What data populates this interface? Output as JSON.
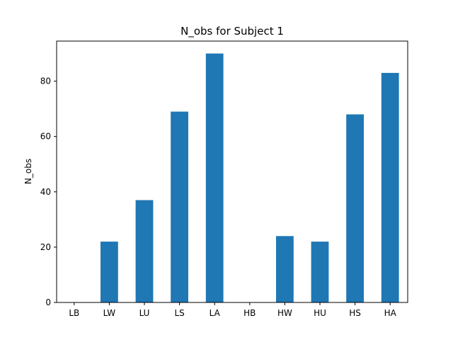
{
  "chart_data": {
    "type": "bar",
    "title": "N_obs for Subject 1",
    "xlabel": "",
    "ylabel": "N_obs",
    "categories": [
      "LB",
      "LW",
      "LU",
      "LS",
      "LA",
      "HB",
      "HW",
      "HU",
      "HS",
      "HA"
    ],
    "values": [
      0,
      22,
      37,
      69,
      90,
      0,
      24,
      22,
      68,
      83
    ],
    "ylim": [
      0,
      94.5
    ],
    "yticks": [
      0,
      20,
      40,
      60,
      80
    ],
    "bar_color": "#1f77b4",
    "grid": false,
    "legend": "none"
  }
}
